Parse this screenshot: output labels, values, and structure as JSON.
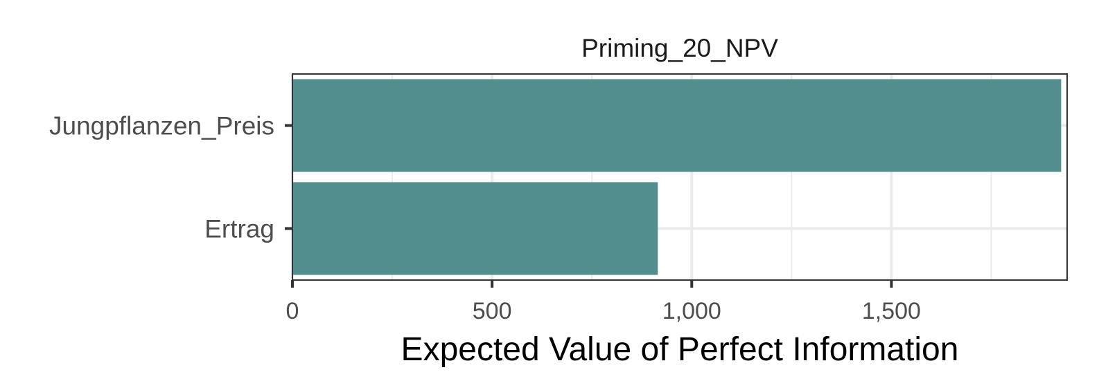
{
  "chart_data": {
    "type": "bar",
    "orientation": "horizontal",
    "title": "Priming_20_NPV",
    "xlabel": "Expected Value of Perfect Information",
    "ylabel": "",
    "categories": [
      "Jungpflanzen_Preis",
      "Ertrag"
    ],
    "values": [
      1925,
      915
    ],
    "xlim": [
      0,
      1940
    ],
    "x_ticks": [
      0,
      500,
      1000,
      1500
    ],
    "x_tick_labels": [
      "0",
      "500",
      "1,000",
      "1,500"
    ],
    "x_minor_ticks": [
      250,
      750,
      1250,
      1750
    ],
    "grid": true,
    "bar_color": "#518e8d",
    "panel_border_color": "#333333",
    "grid_color": "#ebebeb"
  }
}
